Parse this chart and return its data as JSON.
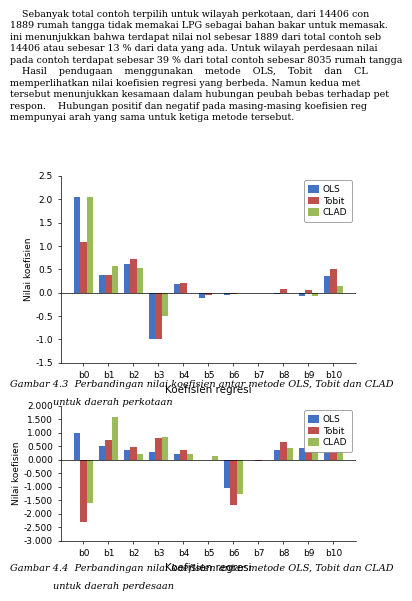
{
  "chart1": {
    "categories": [
      "b0",
      "b1",
      "b2",
      "b3",
      "b4",
      "b5",
      "b6",
      "b7",
      "b8",
      "b9",
      "b10"
    ],
    "OLS": [
      2.05,
      0.37,
      0.62,
      -1.0,
      0.18,
      -0.12,
      -0.05,
      0.0,
      -0.03,
      -0.08,
      0.35
    ],
    "Tobit": [
      1.08,
      0.38,
      0.72,
      -1.0,
      0.2,
      -0.05,
      -0.03,
      0.0,
      0.07,
      0.05,
      0.5
    ],
    "CLAD": [
      2.05,
      0.58,
      0.52,
      -0.5,
      0.0,
      0.0,
      0.0,
      0.0,
      0.0,
      -0.08,
      0.15
    ],
    "ylim": [
      -1.5,
      2.5
    ],
    "yticks": [
      -1.5,
      -1.0,
      -0.5,
      0.0,
      0.5,
      1.0,
      1.5,
      2.0,
      2.5
    ],
    "ytick_labels": [
      "-1.5",
      "-1.0",
      "-0.5",
      "0.0",
      "0.5",
      "1.0",
      "1.5",
      "2.0",
      "2.5"
    ],
    "ylabel": "Nilai koefisien",
    "xlabel": "Koefisien regresi"
  },
  "chart2": {
    "categories": [
      "b0",
      "b1",
      "b2",
      "b3",
      "b4",
      "b5",
      "b6",
      "b7",
      "b8",
      "b9",
      "b10"
    ],
    "OLS": [
      1.0,
      0.5,
      0.35,
      0.28,
      0.22,
      -0.02,
      -1.05,
      0.0,
      0.38,
      0.45,
      1.0
    ],
    "Tobit": [
      -2.3,
      0.72,
      0.48,
      0.82,
      0.38,
      0.0,
      -1.68,
      -0.05,
      0.65,
      1.0,
      1.45
    ],
    "CLAD": [
      -1.6,
      1.57,
      0.2,
      0.85,
      0.22,
      0.15,
      -1.25,
      0.0,
      0.45,
      1.1,
      0.88
    ],
    "ylim": [
      -3.0,
      2.0
    ],
    "yticks": [
      -3.0,
      -2.5,
      -2.0,
      -1.5,
      -1.0,
      -0.5,
      0.0,
      0.5,
      1.0,
      1.5,
      2.0
    ],
    "ytick_labels": [
      "-3.000",
      "-2.500",
      "-2.000",
      "-1.500",
      "-1.000",
      "-0.500",
      "0.000",
      "0.500",
      "1.000",
      "1.500",
      "2.000"
    ],
    "ylabel": "Nilai koefisien",
    "xlabel": "Koefisien regresi"
  },
  "colors": {
    "OLS": "#4472C4",
    "Tobit": "#C0504D",
    "CLAD": "#9BBB59"
  },
  "bar_width": 0.25,
  "top_text_lines": [
    "    Sebanyak total contoh terpilih untuk wilayah perkotaan, dari 14406 con",
    "1889 rumah tangga tidak memakai LPG sebagai bahan bakar untuk memasak.",
    "ini menunjukkan bahwa terdapat nilai nol sebesar 1889 dari total contoh seb",
    "14406 atau sebesar 13 % dari data yang ada. Untuk wilayah perdesaan nilai",
    "pada contoh terdapat sebesar 39 % dari total contoh sebesar 8035 rumah tangga",
    "    Hasil    pendugaan    menggunakan    metode    OLS,    Tobit    dan    CL",
    "memperlihatkan nilai koefisien regresi yang berbeda. Namun kedua met",
    "tersebut menunjukkan kesamaan dalam hubungan peubah bebas terhadap pet",
    "respon.    Hubungan positif dan negatif pada masing-masing koefisien reg",
    "mempunyai arah yang sama untuk ketiga metode tersebut."
  ],
  "caption1_line1": "Gambar 4.3  Perbandingan nilai koefisien antar metode OLS, Tobit dan CLAD",
  "caption1_line2": "untuk daerah perkotaan",
  "caption2_line1": "Gambar 4.4  Perbandingan nilai koefisien antar metode OLS, Tobit dan CLAD",
  "caption2_line2": "untuk daerah perdesaan"
}
